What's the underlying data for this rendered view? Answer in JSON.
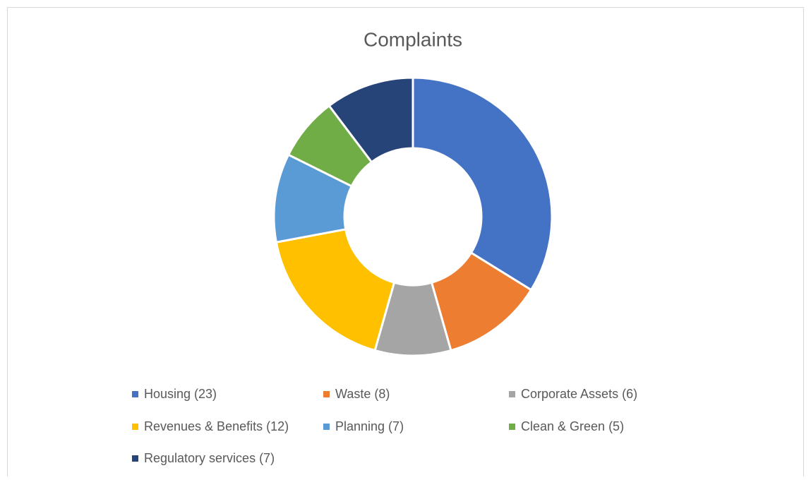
{
  "chart_data": {
    "type": "donut",
    "title": "Complaints",
    "categories": [
      "Housing (23)",
      "Waste (8)",
      "Corporate Assets (6)",
      "Revenues & Benefits (12)",
      "Planning (7)",
      "Clean & Green (5)",
      "Regulatory services (7)"
    ],
    "values": [
      23,
      8,
      6,
      12,
      7,
      5,
      7
    ],
    "colors": [
      "#4472c4",
      "#ed7d31",
      "#a5a5a5",
      "#ffc000",
      "#5b9bd5",
      "#70ad47",
      "#264478"
    ],
    "legend": "bottom"
  }
}
